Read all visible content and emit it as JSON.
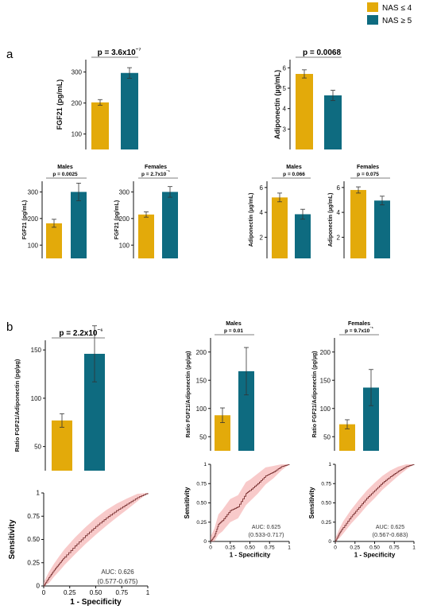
{
  "legend": [
    {
      "label": "NAS ≤ 4",
      "color": "#E3AA0A"
    },
    {
      "label": "NAS ≥ 5",
      "color": "#0E6B80"
    }
  ],
  "panel_labels": {
    "a": "a",
    "b": "b"
  },
  "chart_data": [
    {
      "id": "a-fgf21-all",
      "type": "bar",
      "title": "p = 3.6x10⁻⁷",
      "ylabel": "FGF21 (pg/mL)",
      "categories": [
        "NAS ≤ 4",
        "NAS ≥ 5"
      ],
      "values": [
        202,
        297
      ],
      "error": [
        9,
        17
      ],
      "ylim": [
        50,
        340
      ],
      "yticks": [
        100,
        200,
        300
      ]
    },
    {
      "id": "a-adipo-all",
      "type": "bar",
      "title": "p = 0.0068",
      "ylabel": "Adiponectin (µg/mL)",
      "categories": [
        "NAS ≤ 4",
        "NAS ≥ 5"
      ],
      "values": [
        5.7,
        4.65
      ],
      "error": [
        0.2,
        0.25
      ],
      "ylim": [
        2.0,
        6.4
      ],
      "yticks": [
        3,
        4,
        5,
        6
      ]
    },
    {
      "id": "a-fgf21-males",
      "type": "bar",
      "title": "Males",
      "subtitle": "p = 0.0025",
      "ylabel": "FGF21 (pg/mL)",
      "categories": [
        "NAS ≤ 4",
        "NAS ≥ 5"
      ],
      "values": [
        182,
        300
      ],
      "error": [
        15,
        33
      ],
      "ylim": [
        50,
        340
      ],
      "yticks": [
        100,
        200,
        300
      ]
    },
    {
      "id": "a-fgf21-females",
      "type": "bar",
      "title": "Females",
      "subtitle": "p = 2.7x10⁻⁵",
      "ylabel": "FGF21 (pg/mL)",
      "categories": [
        "NAS ≤ 4",
        "NAS ≥ 5"
      ],
      "values": [
        215,
        300
      ],
      "error": [
        10,
        20
      ],
      "ylim": [
        50,
        340
      ],
      "yticks": [
        100,
        200,
        300
      ]
    },
    {
      "id": "a-adipo-males",
      "type": "bar",
      "title": "Males",
      "subtitle": "p = 0.066",
      "ylabel": "Adiponectin (µg/mL)",
      "categories": [
        "NAS ≤ 4",
        "NAS ≥ 5"
      ],
      "values": [
        5.2,
        3.85
      ],
      "error": [
        0.35,
        0.4
      ],
      "ylim": [
        0.3,
        6.5
      ],
      "yticks": [
        2,
        4,
        6
      ]
    },
    {
      "id": "a-adipo-females",
      "type": "bar",
      "title": "Females",
      "subtitle": "p = 0.075",
      "ylabel": "Adiponectin (µg/mL)",
      "categories": [
        "NAS ≤ 4",
        "NAS ≥ 5"
      ],
      "values": [
        5.8,
        4.95
      ],
      "error": [
        0.25,
        0.35
      ],
      "ylim": [
        0.3,
        6.5
      ],
      "yticks": [
        2,
        4,
        6
      ]
    },
    {
      "id": "b-ratio-all",
      "type": "bar",
      "title": "p = 2.2x10⁻⁶",
      "ylabel": "Ratio FGF21/Adiponectin (pg/µg)",
      "categories": [
        "NAS ≤ 4",
        "NAS ≥ 5"
      ],
      "values": [
        77,
        146
      ],
      "error": [
        7,
        29
      ],
      "ylim": [
        25,
        160
      ],
      "yticks": [
        50,
        100,
        150
      ]
    },
    {
      "id": "b-ratio-males",
      "type": "bar",
      "title": "Males",
      "subtitle": "p = 0.01",
      "ylabel": "Ratio FGF21/Adiponectin (pg/µg)",
      "categories": [
        "NAS ≤ 4",
        "NAS ≥ 5"
      ],
      "values": [
        88,
        166
      ],
      "error": [
        13,
        42
      ],
      "ylim": [
        25,
        225
      ],
      "yticks": [
        50,
        100,
        150,
        200
      ]
    },
    {
      "id": "b-ratio-females",
      "type": "bar",
      "title": "Females",
      "subtitle": "p = 9.7x10⁻⁵",
      "ylabel": "Ratio FGF21/Adiponectin (pg/µg)",
      "categories": [
        "NAS ≤ 4",
        "NAS ≥ 5"
      ],
      "values": [
        72,
        137
      ],
      "error": [
        8,
        32
      ],
      "ylim": [
        25,
        225
      ],
      "yticks": [
        50,
        100,
        150,
        200
      ]
    },
    {
      "id": "b-roc-all",
      "type": "line",
      "xlabel": "1 - Specificity",
      "ylabel": "Sensitivity",
      "xticks": [
        "0",
        "0.25",
        "0.50",
        "0.75",
        "1"
      ],
      "yticks": [
        "0",
        "0.25",
        "0.50",
        "0.75",
        "1"
      ],
      "auc_label": "AUC: 0.626",
      "ci_label": "(0.577-0.675)",
      "x": [
        0,
        0.05,
        0.1,
        0.15,
        0.2,
        0.3,
        0.4,
        0.5,
        0.6,
        0.7,
        0.8,
        0.9,
        1
      ],
      "y": [
        0,
        0.09,
        0.17,
        0.24,
        0.31,
        0.43,
        0.54,
        0.64,
        0.73,
        0.81,
        0.88,
        0.95,
        1
      ],
      "band": [
        0.04,
        0.06,
        0.07,
        0.08,
        0.085,
        0.09,
        0.09,
        0.09,
        0.085,
        0.075,
        0.06,
        0.04,
        0.0
      ]
    },
    {
      "id": "b-roc-males",
      "type": "line",
      "xlabel": "1 - Specificity",
      "ylabel": "Sensitivity",
      "xticks": [
        "0",
        "0.25",
        "0.50",
        "0.75",
        "1"
      ],
      "yticks": [
        "0",
        "0.25",
        "0.50",
        "0.75",
        "1"
      ],
      "auc_label": "AUC: 0.625",
      "ci_label": "(0.533-0.717)",
      "x": [
        0,
        0.05,
        0.1,
        0.15,
        0.25,
        0.35,
        0.45,
        0.5,
        0.6,
        0.7,
        0.8,
        0.9,
        1
      ],
      "y": [
        0,
        0.07,
        0.22,
        0.27,
        0.4,
        0.45,
        0.62,
        0.66,
        0.75,
        0.85,
        0.9,
        0.97,
        1
      ],
      "band": [
        0.06,
        0.1,
        0.13,
        0.14,
        0.15,
        0.15,
        0.15,
        0.14,
        0.13,
        0.11,
        0.08,
        0.05,
        0.0
      ]
    },
    {
      "id": "b-roc-females",
      "type": "line",
      "xlabel": "1 - Specificity",
      "ylabel": "Sensitivity",
      "xticks": [
        "0",
        "0.25",
        "0.50",
        "0.75",
        "1"
      ],
      "yticks": [
        "0",
        "0.25",
        "0.50",
        "0.75",
        "1"
      ],
      "auc_label": "AUC: 0.625",
      "ci_label": "(0.567-0.683)",
      "x": [
        0,
        0.05,
        0.1,
        0.2,
        0.3,
        0.4,
        0.5,
        0.6,
        0.7,
        0.8,
        0.9,
        1
      ],
      "y": [
        0,
        0.1,
        0.18,
        0.32,
        0.44,
        0.56,
        0.66,
        0.76,
        0.84,
        0.91,
        0.97,
        1
      ],
      "band": [
        0.04,
        0.06,
        0.08,
        0.09,
        0.1,
        0.1,
        0.1,
        0.09,
        0.08,
        0.06,
        0.04,
        0.0
      ]
    }
  ]
}
